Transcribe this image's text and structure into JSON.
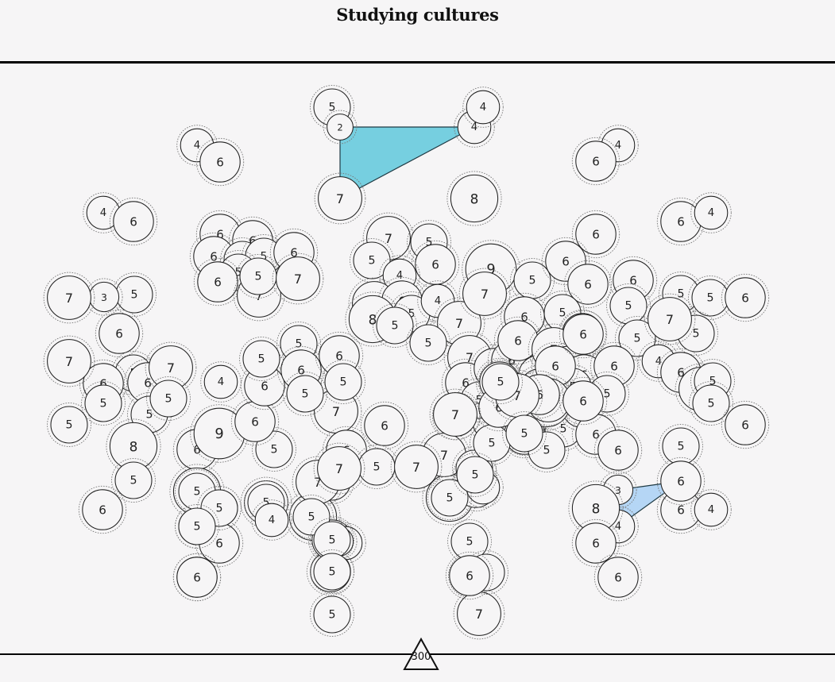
{
  "title": "Studying cultures",
  "score": "300",
  "colors": {
    "background": "#f6f5f6",
    "territory_teal": "#76cfe0",
    "territory_blue": "#b5d6f5",
    "node_stroke": "#222222",
    "ring_stroke": "#7a7a7a"
  },
  "territories": [
    {
      "color": "territory_teal",
      "nodes": [
        1,
        2,
        3
      ]
    },
    {
      "color": "territory_blue",
      "nodes": [
        4,
        5,
        6
      ]
    }
  ],
  "nodes": [
    {
      "v": 5
    },
    {
      "v": 2
    },
    {
      "v": 4
    },
    {
      "v": 7
    },
    {
      "v": 3
    },
    {
      "v": 3
    },
    {
      "v": 4
    },
    {
      "v": 4
    },
    {
      "v": 4
    },
    {
      "v": 6
    },
    {
      "v": 4
    },
    {
      "v": 6
    },
    {
      "v": 8
    },
    {
      "v": 4
    },
    {
      "v": 6
    },
    {
      "v": 6
    },
    {
      "v": 4
    },
    {
      "v": 6
    },
    {
      "v": 6
    },
    {
      "v": 6
    },
    {
      "v": 6
    },
    {
      "v": 5
    },
    {
      "v": 5
    },
    {
      "v": 5
    },
    {
      "v": 6
    },
    {
      "v": 7
    },
    {
      "v": 6
    },
    {
      "v": 5
    },
    {
      "v": 7
    },
    {
      "v": 7
    },
    {
      "v": 5
    },
    {
      "v": 5
    },
    {
      "v": 6
    },
    {
      "v": 4
    },
    {
      "v": 7
    },
    {
      "v": 6
    },
    {
      "v": 5
    },
    {
      "v": 4
    },
    {
      "v": 8
    },
    {
      "v": 5
    },
    {
      "v": 7
    },
    {
      "v": 5
    },
    {
      "v": 9
    },
    {
      "v": 5
    },
    {
      "v": 7
    },
    {
      "v": 6
    },
    {
      "v": 6
    },
    {
      "v": 6
    },
    {
      "v": 5
    },
    {
      "v": 6
    },
    {
      "v": 5
    },
    {
      "v": 5
    },
    {
      "v": 5
    },
    {
      "v": 5
    },
    {
      "v": 5
    },
    {
      "v": 7
    },
    {
      "v": 6
    },
    {
      "v": 4
    },
    {
      "v": 6
    },
    {
      "v": 7
    },
    {
      "v": 5
    },
    {
      "v": 5
    },
    {
      "v": 6
    },
    {
      "v": 5
    },
    {
      "v": 3
    },
    {
      "v": 7
    },
    {
      "v": 6
    },
    {
      "v": 5
    },
    {
      "v": 6
    },
    {
      "v": 5
    },
    {
      "v": 6
    },
    {
      "v": 7
    },
    {
      "v": 5
    },
    {
      "v": 7
    },
    {
      "v": 5
    },
    {
      "v": 8
    },
    {
      "v": 5
    },
    {
      "v": 6
    },
    {
      "v": 5
    },
    {
      "v": 9
    },
    {
      "v": 8
    },
    {
      "v": 5
    },
    {
      "v": 5
    },
    {
      "v": 6
    },
    {
      "v": 6
    },
    {
      "v": 6
    },
    {
      "v": 5
    },
    {
      "v": 6
    },
    {
      "v": 4
    },
    {
      "v": 5
    },
    {
      "v": 6
    },
    {
      "v": 6
    },
    {
      "v": 5
    },
    {
      "v": 6
    },
    {
      "v": 7
    },
    {
      "v": 5
    },
    {
      "v": 5
    },
    {
      "v": 6
    },
    {
      "v": 6
    },
    {
      "v": 8
    },
    {
      "v": 5
    },
    {
      "v": 5
    },
    {
      "v": 8
    },
    {
      "v": 6
    },
    {
      "v": 4
    },
    {
      "v": 7
    },
    {
      "v": 7
    },
    {
      "v": 5
    },
    {
      "v": 5
    },
    {
      "v": 5
    },
    {
      "v": 7
    },
    {
      "v": 6
    },
    {
      "v": 5
    },
    {
      "v": 5
    },
    {
      "v": 5
    },
    {
      "v": 6
    },
    {
      "v": 6
    },
    {
      "v": 6
    },
    {
      "v": 6
    },
    {
      "v": 6
    },
    {
      "v": 5
    },
    {
      "v": 6
    },
    {
      "v": 6
    },
    {
      "v": 7
    },
    {
      "v": 6
    },
    {
      "v": 6
    },
    {
      "v": 6
    },
    {
      "v": 5
    },
    {
      "v": 5
    },
    {
      "v": 5
    },
    {
      "v": 6
    },
    {
      "v": 6
    },
    {
      "v": 6
    },
    {
      "v": 5
    },
    {
      "v": 6
    },
    {
      "v": 6
    },
    {
      "v": 8
    },
    {
      "v": 6
    },
    {
      "v": 6
    },
    {
      "v": 6
    },
    {
      "v": 7
    },
    {
      "v": 5
    },
    {
      "v": 6
    },
    {
      "v": 7
    },
    {
      "v": 6
    },
    {
      "v": 7
    },
    {
      "v": 5
    },
    {
      "v": 5
    },
    {
      "v": 6
    },
    {
      "v": 5
    },
    {
      "v": 8
    },
    {
      "v": 6
    },
    {
      "v": 6
    },
    {
      "v": 5
    },
    {
      "v": 6
    },
    {
      "v": 6
    },
    {
      "v": 5
    },
    {
      "v": 6
    },
    {
      "v": 6
    },
    {
      "v": 4
    },
    {
      "v": 4
    },
    {
      "v": 7
    },
    {
      "v": 7
    },
    {
      "v": 5
    },
    {
      "v": 7
    },
    {
      "v": 5
    },
    {
      "v": 4
    },
    {
      "v": 5
    },
    {
      "v": 5
    },
    {
      "v": 5
    },
    {
      "v": 5
    },
    {
      "v": 6
    },
    {
      "v": 4
    },
    {
      "v": 3
    },
    {
      "v": 5
    },
    {
      "v": 7
    },
    {
      "v": 5
    },
    {
      "v": 5
    },
    {
      "v": 5
    },
    {
      "v": 6
    },
    {
      "v": 6
    },
    {
      "v": 5
    }
  ]
}
